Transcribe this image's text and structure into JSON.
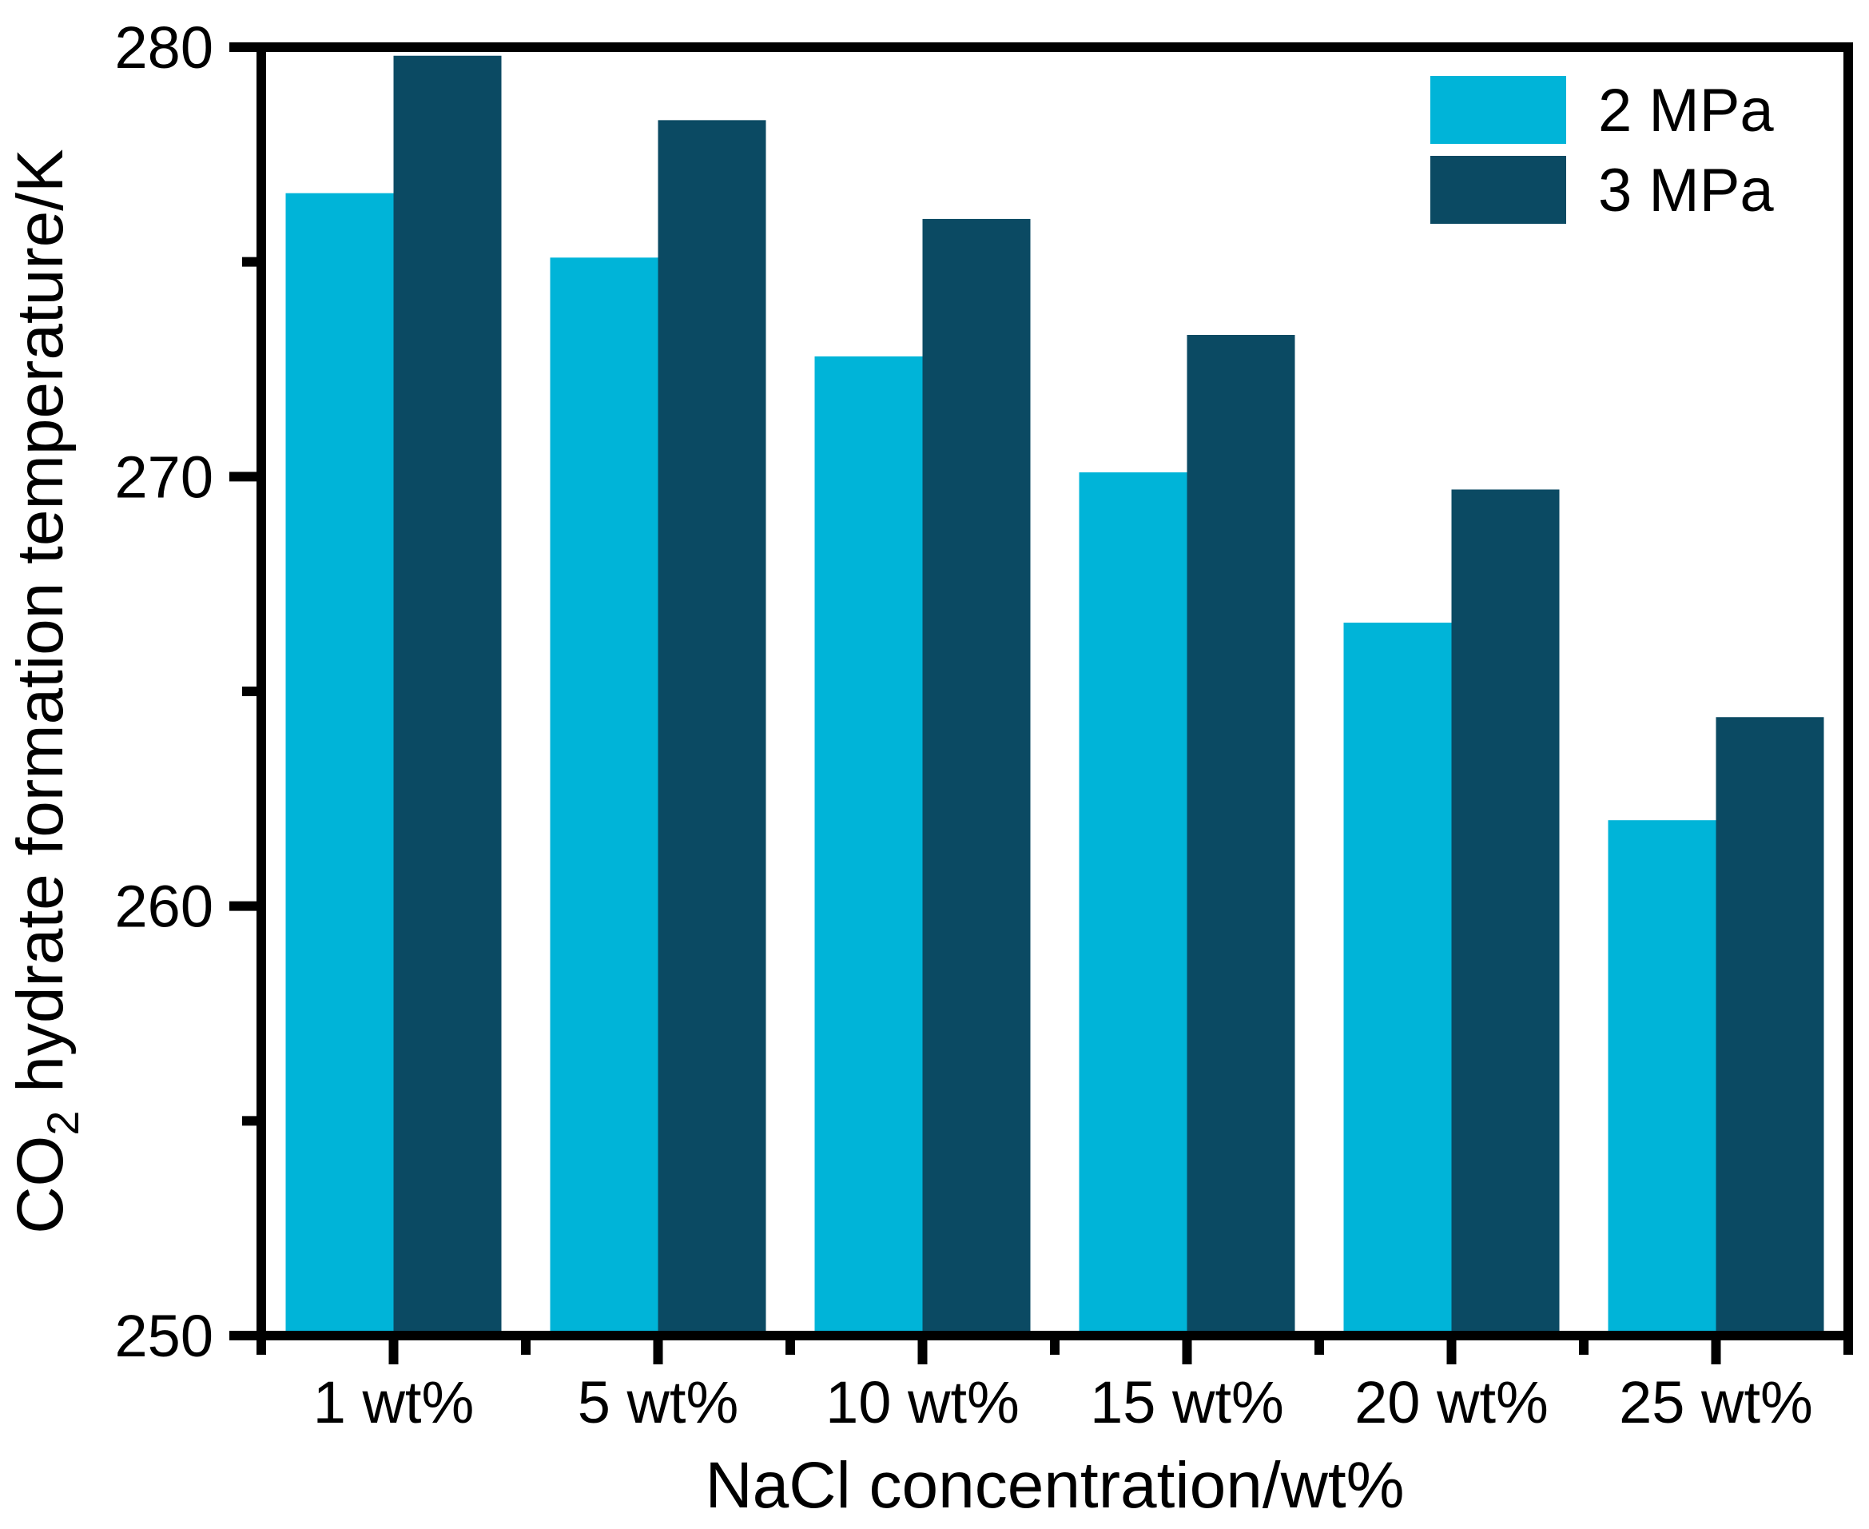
{
  "chart_data": {
    "type": "bar",
    "title": "",
    "categories": [
      "1 wt%",
      "5 wt%",
      "10 wt%",
      "15 wt%",
      "20 wt%",
      "25 wt%"
    ],
    "series": [
      {
        "name": "2 MPa",
        "color": "#00b4d8",
        "values": [
          276.6,
          275.1,
          272.8,
          270.1,
          266.6,
          262.0
        ]
      },
      {
        "name": "3 MPa",
        "color": "#0b4a63",
        "values": [
          279.8,
          278.3,
          276.0,
          273.3,
          269.7,
          264.4
        ]
      }
    ],
    "xlabel": "NaCl concentration/wt%",
    "ylabel": "CO2 hydrate formation temperature/K",
    "ylabel_parts": [
      "CO",
      "2",
      " hydrate formation temperature/K"
    ],
    "ylim": [
      250,
      280
    ],
    "ytick_major": [
      250,
      260,
      270,
      280
    ],
    "ytick_minor": [
      255,
      265,
      275
    ],
    "grid": false,
    "legend_position": "top-right-inside",
    "bar_outline": "none",
    "axis_color": "#000000",
    "background_color": "#ffffff"
  }
}
